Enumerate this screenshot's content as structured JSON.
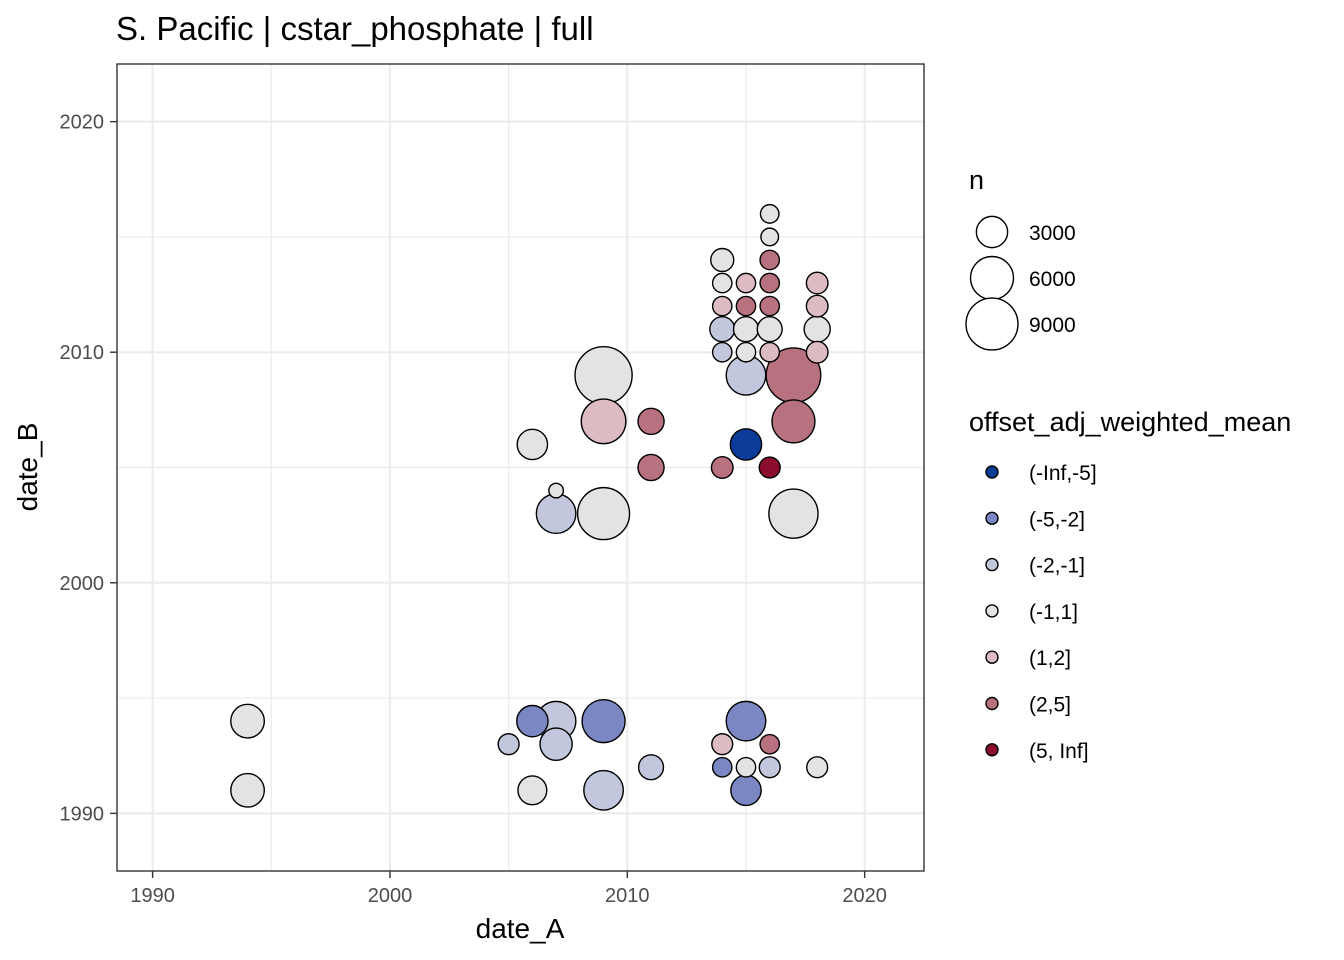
{
  "chart_data": {
    "type": "scatter",
    "title": "S. Pacific | cstar_phosphate | full",
    "xlabel": "date_A",
    "ylabel": "date_B",
    "xlim": [
      1988.5,
      2022.5
    ],
    "ylim": [
      1987.5,
      2022.5
    ],
    "x_ticks": [
      1990,
      2000,
      2010,
      2020
    ],
    "y_ticks": [
      1990,
      2000,
      2010,
      2020
    ],
    "grid": true,
    "legend_position": "right",
    "size_legend": {
      "title": "n",
      "entries": [
        {
          "label": "3000",
          "value": 3000
        },
        {
          "label": "6000",
          "value": 6000
        },
        {
          "label": "9000",
          "value": 9000
        }
      ]
    },
    "color_legend": {
      "title": "offset_adj_weighted_mean",
      "entries": [
        {
          "label": "(-Inf,-5]",
          "color": "#0b3c9a"
        },
        {
          "label": "(-5,-2]",
          "color": "#7b87c2"
        },
        {
          "label": "(-2,-1]",
          "color": "#c3c7dd"
        },
        {
          "label": "(-1,1]",
          "color": "#e3e3e3"
        },
        {
          "label": "(1,2]",
          "color": "#dcbcc2"
        },
        {
          "label": "(2,5]",
          "color": "#b8727f"
        },
        {
          "label": "(5, Inf]",
          "color": "#8b0d2e"
        }
      ]
    },
    "points": [
      {
        "x": 1994,
        "y": 1994,
        "n": 3500,
        "bin": "(-1,1]"
      },
      {
        "x": 1994,
        "y": 1991,
        "n": 3500,
        "bin": "(-1,1]"
      },
      {
        "x": 2005,
        "y": 1993,
        "n": 1200,
        "bin": "(-2,-1]"
      },
      {
        "x": 2006,
        "y": 1994,
        "n": 3000,
        "bin": "(-5,-2]"
      },
      {
        "x": 2006,
        "y": 1991,
        "n": 2500,
        "bin": "(-1,1]"
      },
      {
        "x": 2006,
        "y": 2006,
        "n": 2800,
        "bin": "(-1,1]"
      },
      {
        "x": 2007,
        "y": 1994,
        "n": 5000,
        "bin": "(-2,-1]"
      },
      {
        "x": 2007,
        "y": 1993,
        "n": 3200,
        "bin": "(-2,-1]"
      },
      {
        "x": 2007,
        "y": 2004,
        "n": 500,
        "bin": "(-1,1]"
      },
      {
        "x": 2007,
        "y": 2003,
        "n": 5000,
        "bin": "(-2,-1]"
      },
      {
        "x": 2009,
        "y": 1994,
        "n": 6000,
        "bin": "(-5,-2]"
      },
      {
        "x": 2009,
        "y": 1991,
        "n": 5000,
        "bin": "(-2,-1]"
      },
      {
        "x": 2009,
        "y": 2003,
        "n": 9000,
        "bin": "(-1,1]"
      },
      {
        "x": 2009,
        "y": 2007,
        "n": 6500,
        "bin": "(1,2]"
      },
      {
        "x": 2009,
        "y": 2009,
        "n": 11000,
        "bin": "(-1,1]"
      },
      {
        "x": 2011,
        "y": 1992,
        "n": 1800,
        "bin": "(-2,-1]"
      },
      {
        "x": 2011,
        "y": 2005,
        "n": 2000,
        "bin": "(2,5]"
      },
      {
        "x": 2011,
        "y": 2007,
        "n": 2000,
        "bin": "(2,5]"
      },
      {
        "x": 2014,
        "y": 1993,
        "n": 1200,
        "bin": "(1,2]"
      },
      {
        "x": 2014,
        "y": 1992,
        "n": 1000,
        "bin": "(-5,-2]"
      },
      {
        "x": 2014,
        "y": 2005,
        "n": 1300,
        "bin": "(2,5]"
      },
      {
        "x": 2014,
        "y": 2010,
        "n": 1000,
        "bin": "(-2,-1]"
      },
      {
        "x": 2014,
        "y": 2011,
        "n": 1800,
        "bin": "(-2,-1]"
      },
      {
        "x": 2014,
        "y": 2012,
        "n": 1000,
        "bin": "(1,2]"
      },
      {
        "x": 2014,
        "y": 2013,
        "n": 1000,
        "bin": "(-1,1]"
      },
      {
        "x": 2014,
        "y": 2014,
        "n": 1500,
        "bin": "(-1,1]"
      },
      {
        "x": 2015,
        "y": 1994,
        "n": 5000,
        "bin": "(-5,-2]"
      },
      {
        "x": 2015,
        "y": 1992,
        "n": 1000,
        "bin": "(-1,1]"
      },
      {
        "x": 2015,
        "y": 1991,
        "n": 2800,
        "bin": "(-5,-2]"
      },
      {
        "x": 2015,
        "y": 2006,
        "n": 3000,
        "bin": "(-Inf,-5]"
      },
      {
        "x": 2015,
        "y": 2009,
        "n": 5000,
        "bin": "(-2,-1]"
      },
      {
        "x": 2015,
        "y": 2010,
        "n": 1000,
        "bin": "(-1,1]"
      },
      {
        "x": 2015,
        "y": 2011,
        "n": 1800,
        "bin": "(-1,1]"
      },
      {
        "x": 2015,
        "y": 2012,
        "n": 1000,
        "bin": "(2,5]"
      },
      {
        "x": 2015,
        "y": 2013,
        "n": 1000,
        "bin": "(1,2]"
      },
      {
        "x": 2016,
        "y": 1993,
        "n": 1000,
        "bin": "(2,5]"
      },
      {
        "x": 2016,
        "y": 1992,
        "n": 1200,
        "bin": "(-2,-1]"
      },
      {
        "x": 2016,
        "y": 2005,
        "n": 1200,
        "bin": "(5, Inf]"
      },
      {
        "x": 2016,
        "y": 2010,
        "n": 1000,
        "bin": "(1,2]"
      },
      {
        "x": 2016,
        "y": 2011,
        "n": 1800,
        "bin": "(-1,1]"
      },
      {
        "x": 2016,
        "y": 2012,
        "n": 1000,
        "bin": "(2,5]"
      },
      {
        "x": 2016,
        "y": 2013,
        "n": 1000,
        "bin": "(2,5]"
      },
      {
        "x": 2016,
        "y": 2014,
        "n": 1000,
        "bin": "(2,5]"
      },
      {
        "x": 2016,
        "y": 2015,
        "n": 800,
        "bin": "(-1,1]"
      },
      {
        "x": 2016,
        "y": 2016,
        "n": 900,
        "bin": "(-1,1]"
      },
      {
        "x": 2017,
        "y": 2003,
        "n": 8000,
        "bin": "(-1,1]"
      },
      {
        "x": 2017,
        "y": 2007,
        "n": 6000,
        "bin": "(2,5]"
      },
      {
        "x": 2017,
        "y": 2009,
        "n": 10000,
        "bin": "(2,5]"
      },
      {
        "x": 2018,
        "y": 1992,
        "n": 1200,
        "bin": "(-1,1]"
      },
      {
        "x": 2018,
        "y": 2010,
        "n": 1300,
        "bin": "(1,2]"
      },
      {
        "x": 2018,
        "y": 2011,
        "n": 2000,
        "bin": "(-1,1]"
      },
      {
        "x": 2018,
        "y": 2012,
        "n": 1300,
        "bin": "(1,2]"
      },
      {
        "x": 2018,
        "y": 2013,
        "n": 1300,
        "bin": "(1,2]"
      }
    ]
  }
}
